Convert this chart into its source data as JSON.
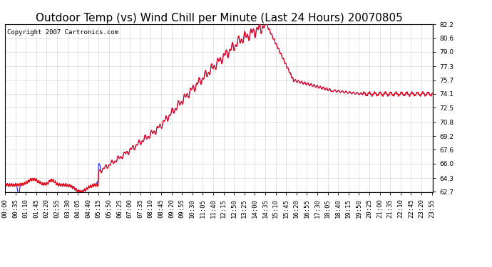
{
  "title": "Outdoor Temp (vs) Wind Chill per Minute (Last 24 Hours) 20070805",
  "copyright": "Copyright 2007 Cartronics.com",
  "line_color_temp": "#ff0000",
  "line_color_windchill": "#0000ff",
  "bg_color": "#ffffff",
  "grid_color": "#cccccc",
  "ylim": [
    62.7,
    82.2
  ],
  "yticks": [
    62.7,
    64.3,
    66.0,
    67.6,
    69.2,
    70.8,
    72.5,
    74.1,
    75.7,
    77.3,
    79.0,
    80.6,
    82.2
  ],
  "title_fontsize": 11,
  "tick_fontsize": 6.5,
  "copyright_fontsize": 6.5,
  "num_minutes": 1440,
  "xtick_step": 35
}
